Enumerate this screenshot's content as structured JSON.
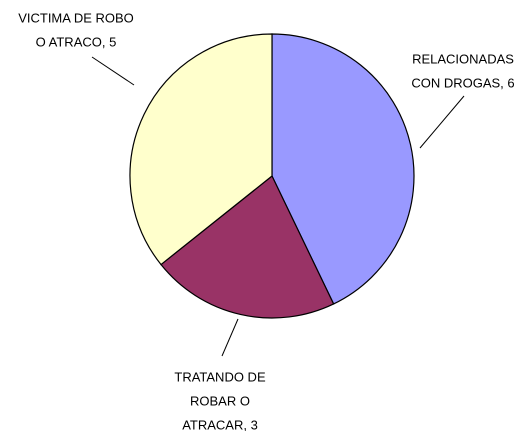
{
  "chart_data": {
    "type": "pie",
    "values": [
      6,
      3,
      5
    ],
    "value_labels": [
      [
        "RELACIONADAS",
        "CON DROGAS, 6"
      ],
      [
        "TRATANDO DE",
        "ROBAR O",
        "ATRACAR, 3"
      ],
      [
        "VICTIMA DE ROBO",
        "O ATRACO, 5"
      ]
    ],
    "colors": [
      "#9999ff",
      "#993366",
      "#ffffcc"
    ]
  }
}
